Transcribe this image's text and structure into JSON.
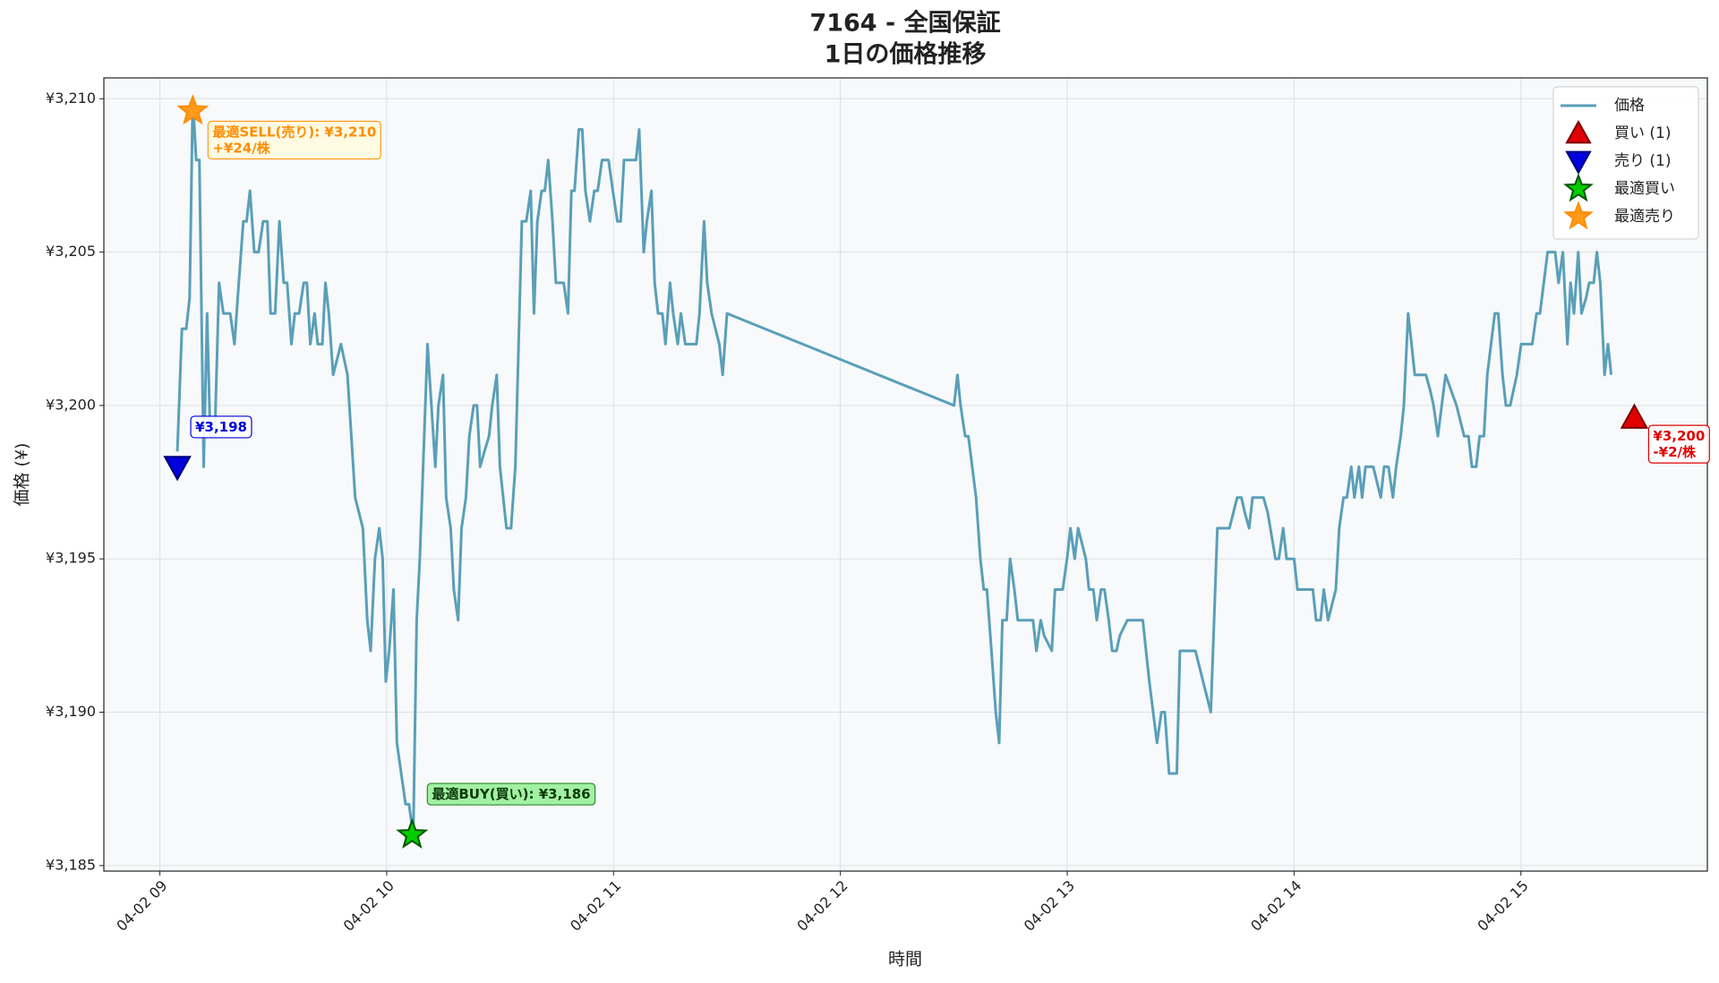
{
  "chart_data": {
    "type": "line",
    "title": [
      "7164 - 全国保証",
      "1日の価格推移"
    ],
    "x_label": "時間",
    "y_label": "価格 (¥)",
    "xlim": [
      8.753,
      15.822
    ],
    "ylim": [
      3184.82,
      3210.68
    ],
    "xticks": [
      {
        "value": 9,
        "label": "04-02 09"
      },
      {
        "value": 10,
        "label": "04-02 10"
      },
      {
        "value": 11,
        "label": "04-02 11"
      },
      {
        "value": 12,
        "label": "04-02 12"
      },
      {
        "value": 13,
        "label": "04-02 13"
      },
      {
        "value": 14,
        "label": "04-02 14"
      },
      {
        "value": 15,
        "label": "04-02 15"
      }
    ],
    "yticks": [
      {
        "value": 3185,
        "label": "¥3,185"
      },
      {
        "value": 3190,
        "label": "¥3,190"
      },
      {
        "value": 3195,
        "label": "¥3,195"
      },
      {
        "value": 3200,
        "label": "¥3,200"
      },
      {
        "value": 3205,
        "label": "¥3,205"
      },
      {
        "value": 3210,
        "label": "¥3,210"
      }
    ],
    "grid": true,
    "legend": "upper right",
    "series": [
      {
        "name": "価格",
        "color": "#5a9fb8",
        "marker": "line",
        "x": [
          9.077,
          9.097,
          9.116,
          9.131,
          9.145,
          9.16,
          9.174,
          9.193,
          9.208,
          9.222,
          9.242,
          9.261,
          9.28,
          9.31,
          9.329,
          9.348,
          9.368,
          9.382,
          9.397,
          9.416,
          9.435,
          9.455,
          9.474,
          9.488,
          9.508,
          9.527,
          9.546,
          9.561,
          9.58,
          9.595,
          9.614,
          9.634,
          9.648,
          9.663,
          9.682,
          9.696,
          9.716,
          9.73,
          9.745,
          9.764,
          9.798,
          9.827,
          9.861,
          9.895,
          9.914,
          9.929,
          9.948,
          9.967,
          9.982,
          9.996,
          10.011,
          10.03,
          10.045,
          10.083,
          10.098,
          10.117,
          10.132,
          10.146,
          10.18,
          10.214,
          10.228,
          10.248,
          10.262,
          10.282,
          10.296,
          10.315,
          10.33,
          10.349,
          10.364,
          10.383,
          10.398,
          10.412,
          10.431,
          10.451,
          10.465,
          10.485,
          10.499,
          10.528,
          10.548,
          10.567,
          10.596,
          10.615,
          10.635,
          10.649,
          10.664,
          10.683,
          10.697,
          10.712,
          10.731,
          10.746,
          10.78,
          10.799,
          10.814,
          10.828,
          10.847,
          10.862,
          10.876,
          10.896,
          10.915,
          10.93,
          10.949,
          10.978,
          10.997,
          11.017,
          11.031,
          11.046,
          11.079,
          11.099,
          11.113,
          11.133,
          11.147,
          11.167,
          11.181,
          11.196,
          11.215,
          11.229,
          11.249,
          11.263,
          11.283,
          11.297,
          11.316,
          11.365,
          11.379,
          11.399,
          11.413,
          11.432,
          11.466,
          11.481,
          11.5,
          12.501,
          12.516,
          12.53,
          12.55,
          12.564,
          12.598,
          12.617,
          12.632,
          12.646,
          12.666,
          12.685,
          12.7,
          12.714,
          12.733,
          12.748,
          12.767,
          12.782,
          12.816,
          12.849,
          12.864,
          12.883,
          12.898,
          12.932,
          12.946,
          12.98,
          12.999,
          13.014,
          13.033,
          13.048,
          13.082,
          13.096,
          13.115,
          13.13,
          13.149,
          13.164,
          13.183,
          13.198,
          13.217,
          13.232,
          13.265,
          13.333,
          13.362,
          13.396,
          13.415,
          13.43,
          13.449,
          13.483,
          13.497,
          13.565,
          13.599,
          13.633,
          13.662,
          13.715,
          13.749,
          13.768,
          13.783,
          13.802,
          13.817,
          13.865,
          13.884,
          13.918,
          13.933,
          13.952,
          13.967,
          14.0,
          14.015,
          14.068,
          14.083,
          14.097,
          14.117,
          14.131,
          14.15,
          14.184,
          14.199,
          14.218,
          14.233,
          14.252,
          14.266,
          14.286,
          14.3,
          14.315,
          14.349,
          14.382,
          14.397,
          14.416,
          14.436,
          14.45,
          14.47,
          14.484,
          14.503,
          14.518,
          14.532,
          14.581,
          14.6,
          14.615,
          14.634,
          14.668,
          14.716,
          14.75,
          14.769,
          14.784,
          14.803,
          14.818,
          14.837,
          14.852,
          14.885,
          14.9,
          14.919,
          14.934,
          14.953,
          14.982,
          15.001,
          15.05,
          15.069,
          15.084,
          15.118,
          15.151,
          15.166,
          15.185,
          15.205,
          15.219,
          15.234,
          15.253,
          15.267,
          15.287,
          15.301,
          15.321,
          15.335,
          15.35,
          15.369,
          15.384,
          15.398
        ],
        "values": [
          3198.5,
          3202.5,
          3202.5,
          3203.5,
          3210,
          3208,
          3208,
          3198,
          3203,
          3199,
          3199,
          3204,
          3203,
          3203,
          3202,
          3204,
          3206,
          3206,
          3207,
          3205,
          3205,
          3206,
          3206,
          3203,
          3203,
          3206,
          3204,
          3204,
          3202,
          3203,
          3203,
          3204,
          3204,
          3202,
          3203,
          3202,
          3202,
          3204,
          3203,
          3201,
          3202,
          3201,
          3197,
          3196,
          3193,
          3192,
          3195,
          3196,
          3195,
          3191,
          3192,
          3194,
          3189,
          3187,
          3187,
          3186,
          3193,
          3195,
          3202,
          3198,
          3200,
          3201,
          3197,
          3196,
          3194,
          3193,
          3196,
          3197,
          3199,
          3200,
          3200,
          3198,
          3198.5,
          3199,
          3200,
          3201,
          3198,
          3196,
          3196,
          3198,
          3206,
          3206,
          3207,
          3203,
          3206,
          3207,
          3207,
          3208,
          3206,
          3204,
          3204,
          3203,
          3207,
          3207,
          3209,
          3209,
          3207,
          3206,
          3207,
          3207,
          3208,
          3208,
          3207,
          3206,
          3206,
          3208,
          3208,
          3208,
          3209,
          3205,
          3206,
          3207,
          3204,
          3203,
          3203,
          3202,
          3204,
          3203,
          3202,
          3203,
          3202,
          3202,
          3203,
          3206,
          3204,
          3203,
          3202,
          3201,
          3203,
          3200,
          3201,
          3200,
          3199,
          3199,
          3197,
          3195,
          3194,
          3194,
          3192,
          3190,
          3189,
          3193,
          3193,
          3195,
          3194,
          3193,
          3193,
          3193,
          3192,
          3193,
          3192.5,
          3192,
          3194,
          3194,
          3195,
          3196,
          3195,
          3196,
          3195,
          3194,
          3194,
          3193,
          3194,
          3194,
          3193,
          3192,
          3192,
          3192.5,
          3193,
          3193,
          3191,
          3189,
          3190,
          3190,
          3188,
          3188,
          3192,
          3192,
          3191,
          3190,
          3196,
          3196,
          3197,
          3197,
          3196.5,
          3196,
          3197,
          3197,
          3196.5,
          3195,
          3195,
          3196,
          3195,
          3195,
          3194,
          3194,
          3194,
          3193,
          3193,
          3194,
          3193,
          3194,
          3196,
          3197,
          3197,
          3198,
          3197,
          3198,
          3197,
          3198,
          3198,
          3197,
          3198,
          3198,
          3197,
          3198,
          3199,
          3200,
          3203,
          3202,
          3201,
          3201,
          3200.5,
          3200,
          3199,
          3201,
          3200,
          3199,
          3199,
          3198,
          3198,
          3199,
          3199,
          3201,
          3203,
          3203,
          3201,
          3200,
          3200,
          3201,
          3202,
          3202,
          3203,
          3203,
          3205,
          3205,
          3204,
          3205,
          3202,
          3204,
          3203,
          3205,
          3203,
          3203.5,
          3204,
          3204,
          3205,
          3204,
          3201,
          3202,
          3201
        ]
      },
      {
        "name": "買い (1)",
        "color": "#e00000",
        "marker": "triangle-up",
        "x": [
          15.5
        ],
        "values": [
          3199.6
        ],
        "value_labels": [
          "¥3,200"
        ],
        "profit_labels": [
          "-¥2/株"
        ]
      },
      {
        "name": "売り (1)",
        "color": "#0000dd",
        "marker": "triangle-down",
        "x": [
          9.077
        ],
        "values": [
          3198
        ],
        "value_labels": [
          "¥3,198"
        ]
      },
      {
        "name": "最適買い",
        "color": "#00cc00",
        "marker": "star",
        "x": [
          10.112
        ],
        "values": [
          3186
        ],
        "value_labels": [
          "最適BUY(買い): ¥3,186"
        ]
      },
      {
        "name": "最適売り",
        "color": "#ff9a1a",
        "marker": "star",
        "x": [
          9.145
        ],
        "values": [
          3209.6
        ],
        "value_labels": [
          "最適SELL(売り): ¥3,210"
        ],
        "profit_labels": [
          "+¥24/株"
        ]
      }
    ]
  }
}
